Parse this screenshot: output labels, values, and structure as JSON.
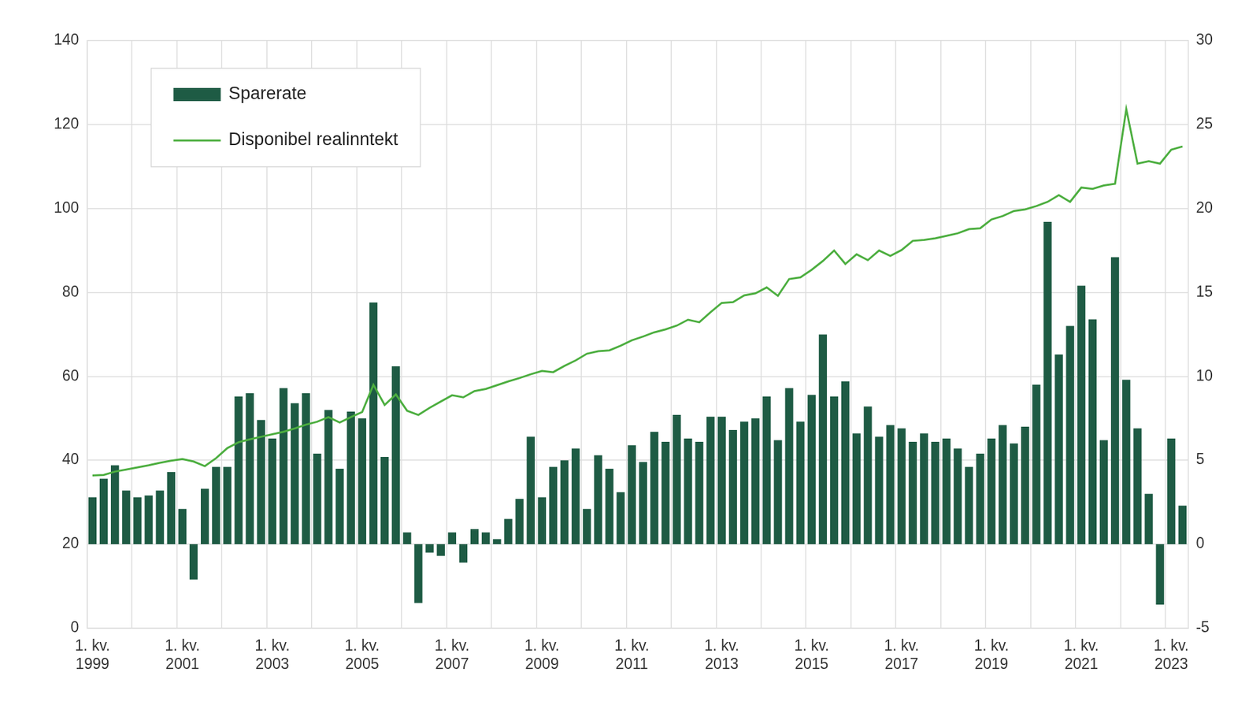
{
  "chart_data": {
    "type": "bar",
    "categories": [
      "1. kv. 1999",
      null,
      null,
      null,
      null,
      null,
      null,
      null,
      "1. kv. 2001",
      null,
      null,
      null,
      null,
      null,
      null,
      null,
      "1. kv. 2003",
      null,
      null,
      null,
      null,
      null,
      null,
      null,
      "1. kv. 2005",
      null,
      null,
      null,
      null,
      null,
      null,
      null,
      "1. kv. 2007",
      null,
      null,
      null,
      null,
      null,
      null,
      null,
      "1. kv. 2009",
      null,
      null,
      null,
      null,
      null,
      null,
      null,
      "1. kv. 2011",
      null,
      null,
      null,
      null,
      null,
      null,
      null,
      "1. kv. 2013",
      null,
      null,
      null,
      null,
      null,
      null,
      null,
      "1. kv. 2015",
      null,
      null,
      null,
      null,
      null,
      null,
      null,
      "1. kv. 2017",
      null,
      null,
      null,
      null,
      null,
      null,
      null,
      "1. kv. 2019",
      null,
      null,
      null,
      null,
      null,
      null,
      null,
      "1. kv. 2021",
      null,
      null,
      null,
      null,
      null,
      null,
      null,
      "1. kv. 2023",
      null
    ],
    "series": [
      {
        "name": "Sparerate",
        "type": "bar",
        "color": "#1e5b44",
        "axis": "y2",
        "values": [
          2.8,
          3.9,
          4.7,
          3.2,
          2.8,
          2.9,
          3.2,
          4.3,
          2.1,
          -2.1,
          3.3,
          4.6,
          4.6,
          8.8,
          9.0,
          7.4,
          6.3,
          9.3,
          8.4,
          9.0,
          5.4,
          8.0,
          4.5,
          7.9,
          7.5,
          14.4,
          5.2,
          10.6,
          0.7,
          -3.5,
          -0.5,
          -0.7,
          0.7,
          -1.1,
          0.9,
          0.7,
          0.3,
          1.5,
          2.7,
          6.4,
          2.8,
          4.6,
          5.0,
          5.7,
          2.1,
          5.3,
          4.5,
          3.1,
          5.9,
          4.9,
          6.7,
          6.1,
          7.7,
          6.3,
          6.1,
          7.6,
          7.6,
          6.8,
          7.3,
          7.5,
          8.8,
          6.2,
          9.3,
          7.3,
          8.9,
          12.5,
          8.8,
          9.7,
          6.6,
          8.2,
          6.4,
          7.1,
          6.9,
          6.1,
          6.6,
          6.1,
          6.3,
          5.7,
          4.6,
          5.4,
          6.3,
          7.1,
          6.0,
          7.0,
          9.5,
          19.2,
          11.3,
          13.0,
          15.4,
          13.4,
          6.2,
          17.1,
          9.8,
          6.9,
          3.0,
          -3.6,
          6.3,
          2.3
        ]
      },
      {
        "name": "Disponibel realinntekt",
        "type": "line",
        "color": "#4cae3f",
        "values": [
          36.4,
          36.5,
          37.3,
          37.8,
          38.3,
          38.8,
          39.4,
          39.9,
          40.3,
          39.7,
          38.6,
          40.5,
          42.9,
          44.3,
          45.0,
          45.6,
          46.2,
          46.8,
          47.6,
          48.5,
          49.2,
          50.3,
          49.0,
          50.3,
          51.5,
          58.0,
          53.2,
          55.7,
          51.8,
          50.8,
          52.5,
          54.0,
          55.5,
          55.0,
          56.5,
          57.0,
          57.9,
          58.8,
          59.6,
          60.5,
          61.3,
          61.0,
          62.5,
          63.8,
          65.4,
          66.0,
          66.2,
          67.3,
          68.6,
          69.5,
          70.5,
          71.2,
          72.1,
          73.5,
          72.9,
          75.3,
          77.5,
          77.7,
          79.3,
          79.8,
          81.2,
          79.2,
          83.2,
          83.6,
          85.4,
          87.5,
          90.0,
          86.8,
          89.1,
          87.7,
          90.0,
          88.7,
          90.1,
          92.3,
          92.5,
          92.9,
          93.5,
          94.1,
          95.1,
          95.3,
          97.4,
          98.2,
          99.4,
          99.8,
          100.6,
          101.6,
          103.2,
          101.6,
          105.0,
          104.7,
          105.5,
          105.9,
          123.7,
          110.7,
          111.3,
          110.7,
          114.0,
          114.8
        ]
      }
    ],
    "ylim": [
      0,
      140
    ],
    "yticks": [
      0,
      20,
      40,
      60,
      80,
      100,
      120,
      140
    ],
    "y2lim": [
      -5,
      30
    ],
    "y2ticks": [
      -5,
      0,
      5,
      10,
      15,
      20,
      25,
      30
    ],
    "grid": true,
    "legend": "upper left"
  }
}
